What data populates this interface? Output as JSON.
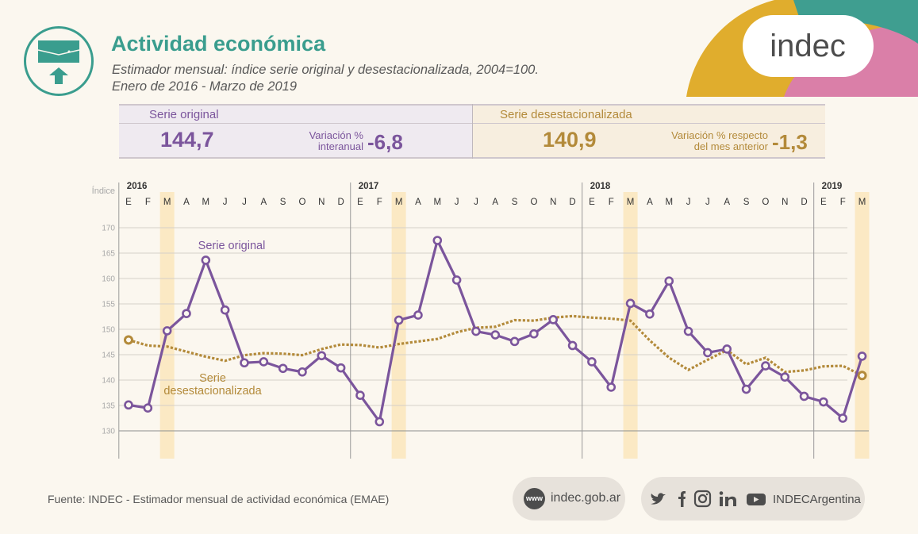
{
  "header": {
    "title": "Actividad económica",
    "subtitle_line1": "Estimador mensual: índice serie original y desestacionalizada, 2004=100.",
    "subtitle_line2": "Enero de 2016 - Marzo de 2019",
    "brand": "indec"
  },
  "summary": {
    "original": {
      "label": "Serie original",
      "value": "144,7",
      "variation_label_1": "Variación %",
      "variation_label_2": "interanual",
      "variation_value": "-6,8"
    },
    "deseasonalized": {
      "label": "Serie desestacionalizada",
      "value": "140,9",
      "variation_label_1": "Variación % respecto",
      "variation_label_2": "del mes anterior",
      "variation_value": "-1,3"
    }
  },
  "colors": {
    "original": "#7b559c",
    "deseasonalized": "#b38a3a",
    "teal": "#3a9d8e",
    "highlight": "#fbe9c4"
  },
  "chart_data": {
    "type": "line",
    "ylabel": "Índice",
    "ylim": [
      130,
      170
    ],
    "yticks": [
      130,
      135,
      140,
      145,
      150,
      155,
      160,
      165,
      170
    ],
    "years": [
      {
        "label": "2016",
        "start_index": 0
      },
      {
        "label": "2017",
        "start_index": 12
      },
      {
        "label": "2018",
        "start_index": 24
      },
      {
        "label": "2019",
        "start_index": 36
      }
    ],
    "months": [
      "E",
      "F",
      "M",
      "A",
      "M",
      "J",
      "J",
      "A",
      "S",
      "O",
      "N",
      "D",
      "E",
      "F",
      "M",
      "A",
      "M",
      "J",
      "J",
      "A",
      "S",
      "O",
      "N",
      "D",
      "E",
      "F",
      "M",
      "A",
      "M",
      "J",
      "J",
      "A",
      "S",
      "O",
      "N",
      "D",
      "E",
      "F",
      "M"
    ],
    "highlight_indices": [
      2,
      14,
      26,
      38
    ],
    "series": [
      {
        "name": "Serie original",
        "label_1": "Serie original",
        "values": [
          135.1,
          134.5,
          149.7,
          153.1,
          163.6,
          153.8,
          143.4,
          143.6,
          142.3,
          141.6,
          144.8,
          142.4,
          137.0,
          131.8,
          151.8,
          152.8,
          167.5,
          159.7,
          149.6,
          148.9,
          147.6,
          149.1,
          151.9,
          146.8,
          143.6,
          138.6,
          155.1,
          153.0,
          159.5,
          149.6,
          145.4,
          146.1,
          138.2,
          142.8,
          140.6,
          136.8,
          135.7,
          132.5,
          144.7
        ]
      },
      {
        "name": "Serie desestacionalizada",
        "label_1": "Serie",
        "label_2": "desestacionalizada",
        "values": [
          147.9,
          146.8,
          146.6,
          145.6,
          144.6,
          143.8,
          144.9,
          145.3,
          145.2,
          144.9,
          146.1,
          147.0,
          146.9,
          146.4,
          147.1,
          147.6,
          148.1,
          149.4,
          150.3,
          150.5,
          151.8,
          151.7,
          152.3,
          152.6,
          152.3,
          152.1,
          151.7,
          147.8,
          144.4,
          142.0,
          144.0,
          145.9,
          143.1,
          144.4,
          141.6,
          141.9,
          142.7,
          142.8,
          140.9
        ]
      }
    ],
    "annotations": [
      {
        "text": "Serie original",
        "series": 0
      },
      {
        "text": "Serie desestacionalizada",
        "series": 1
      }
    ]
  },
  "footer": {
    "source": "Fuente: INDEC - Estimador mensual de actividad económica (EMAE)",
    "www": "www",
    "website": "indec.gob.ar",
    "social_handle": "INDECArgentina",
    "social_icons": [
      "twitter-icon",
      "facebook-icon",
      "instagram-icon",
      "linkedin-icon",
      "youtube-icon"
    ]
  }
}
